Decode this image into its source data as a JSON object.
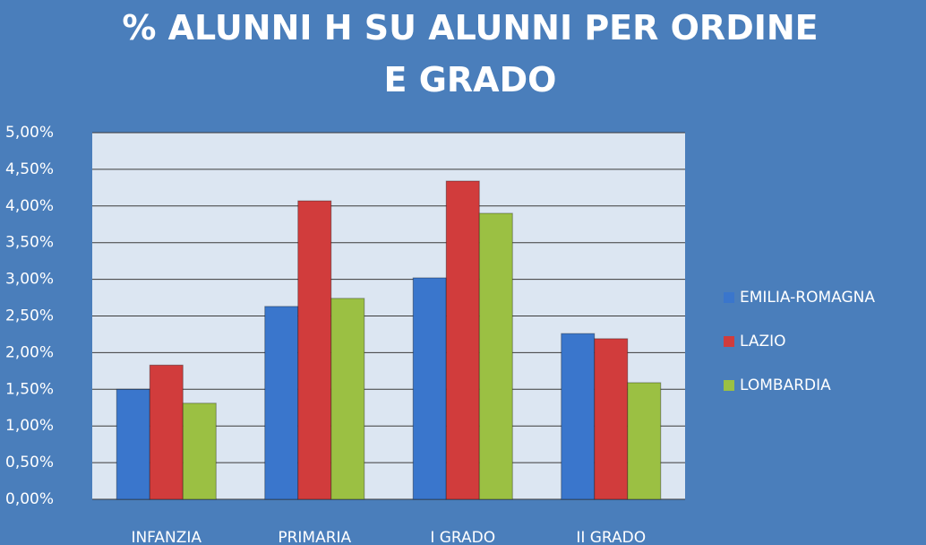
{
  "chart_data": {
    "type": "bar",
    "title": "% ALUNNI H SU ALUNNI PER ORDINE E GRADO",
    "categories": [
      "INFANZIA",
      "PRIMARIA",
      "I GRADO",
      "II GRADO"
    ],
    "series": [
      {
        "name": "EMILIA-ROMAGNA",
        "color": "#3a76cc",
        "values": [
          1.5,
          2.63,
          3.02,
          2.26
        ]
      },
      {
        "name": "LAZIO",
        "color": "#d13c3c",
        "values": [
          1.83,
          4.07,
          4.34,
          2.19
        ]
      },
      {
        "name": "LOMBARDIA",
        "color": "#9bc043",
        "values": [
          1.31,
          2.74,
          3.9,
          1.59
        ]
      }
    ],
    "ylim": [
      0,
      5
    ],
    "yticks": [
      {
        "value": 0,
        "label": "0,00%"
      },
      {
        "value": 0.5,
        "label": "0,50%"
      },
      {
        "value": 1,
        "label": "1,00%"
      },
      {
        "value": 1.5,
        "label": "1,50%"
      },
      {
        "value": 2,
        "label": "2,00%"
      },
      {
        "value": 2.5,
        "label": "2,50%"
      },
      {
        "value": 3,
        "label": "3,00%"
      },
      {
        "value": 3.5,
        "label": "3,50%"
      },
      {
        "value": 4,
        "label": "4,00%"
      },
      {
        "value": 4.5,
        "label": "4,50%"
      },
      {
        "value": 5,
        "label": "5,00%"
      }
    ],
    "grid": true,
    "legend": "right"
  }
}
